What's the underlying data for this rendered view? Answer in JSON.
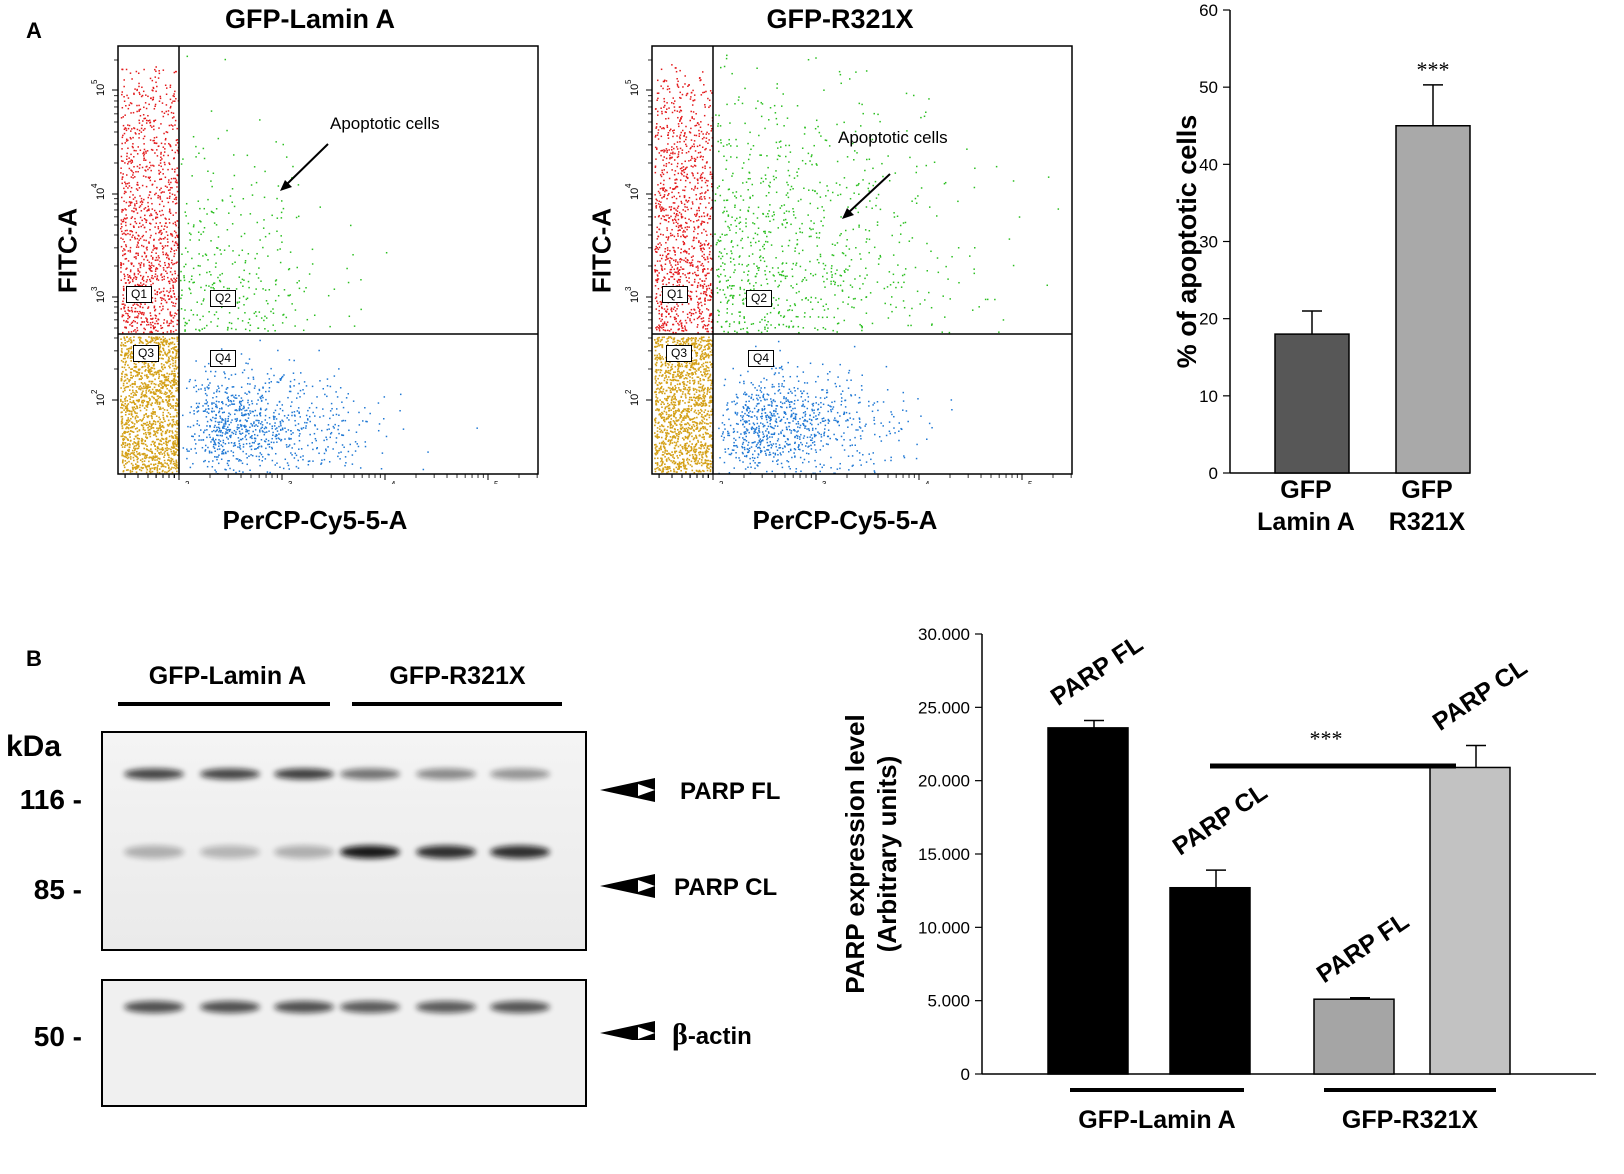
{
  "panel_a": {
    "letter": "A",
    "flow_left": {
      "title": "GFP-Lamin A",
      "ylabel": "FITC-A",
      "xlabel": "PerCP-Cy5-5-A",
      "annotation": "Apoptotic cells",
      "gates": [
        "Q1",
        "Q2",
        "Q3",
        "Q4"
      ],
      "x_ticks": [
        "10",
        "10",
        "10",
        "10"
      ],
      "x_tick_exps": [
        "2",
        "3",
        "4",
        "5"
      ],
      "y_ticks": [
        "10",
        "10",
        "10",
        "10"
      ],
      "y_tick_exps": [
        "5",
        "4",
        "3",
        "2"
      ]
    },
    "flow_right": {
      "title": "GFP-R321X",
      "ylabel": "FITC-A",
      "xlabel": "PerCP-Cy5-5-A",
      "annotation": "Apoptotic cells",
      "gates": [
        "Q1",
        "Q2",
        "Q3",
        "Q4"
      ]
    },
    "colors": {
      "q1": "#e31a1c",
      "q2": "#2bbf20",
      "q3": "#d4a017",
      "q4": "#1f78d4"
    }
  },
  "chart_data": [
    {
      "type": "bar",
      "ylabel": "% of apoptotic cells",
      "categories": [
        "GFP\nLamin A",
        "GFP\nR321X"
      ],
      "category_lines": [
        [
          "GFP",
          "Lamin A"
        ],
        [
          "GFP",
          "R321X"
        ]
      ],
      "values": [
        18,
        45
      ],
      "errors": [
        3,
        5.3
      ],
      "ylim": [
        0,
        60
      ],
      "yticks": [
        0,
        10,
        20,
        30,
        40,
        50,
        60
      ],
      "significance": "***",
      "colors": [
        "#575757",
        "#a9a9a9"
      ]
    },
    {
      "type": "bar",
      "ylabel_line1": "PARP expression level",
      "ylabel_line2": "(Arbitrary units)",
      "bar_labels": [
        "PARP FL",
        "PARP CL",
        "PARP FL",
        "PARP CL"
      ],
      "values": [
        23600,
        12700,
        5100,
        20900
      ],
      "errors": [
        500,
        1200,
        100,
        1500
      ],
      "ylim": [
        0,
        30000
      ],
      "ytick_labels": [
        "0",
        "5.000",
        "10.000",
        "15.000",
        "20.000",
        "25.000",
        "30.000"
      ],
      "ytick_values": [
        0,
        5000,
        10000,
        15000,
        20000,
        25000,
        30000
      ],
      "groups": [
        "GFP-Lamin A",
        "GFP-R321X"
      ],
      "significance": "***",
      "colors": [
        "#000000",
        "#000000",
        "#a5a5a5",
        "#c2c2c2"
      ]
    }
  ],
  "panel_b": {
    "letter": "B",
    "blot": {
      "group_labels": [
        "GFP-Lamin A",
        "GFP-R321X"
      ],
      "kda_label": "kDa",
      "mw_markers": [
        "116 -",
        "85 -",
        "50 -"
      ],
      "band_labels": [
        "PARP FL",
        "PARP CL",
        "-actin"
      ],
      "beta_symbol": "β"
    }
  }
}
